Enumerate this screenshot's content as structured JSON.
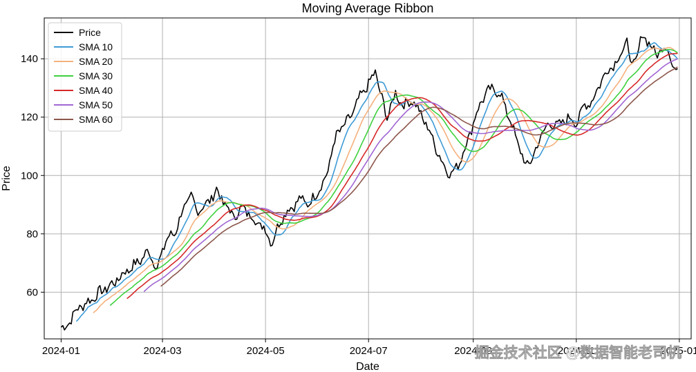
{
  "chart_data": {
    "type": "line",
    "title": "Moving Average Ribbon",
    "xlabel": "Date",
    "ylabel": "Price",
    "x_start": "2024-01-01",
    "x_end": "2024-12-31",
    "xlim": [
      "2023-12-22",
      "2025-01-08"
    ],
    "ylim": [
      44,
      154
    ],
    "x_ticks": [
      "2024-01",
      "2024-03",
      "2024-05",
      "2024-07",
      "2024-09",
      "2024-11",
      "2025-01"
    ],
    "x_tick_labels": [
      "2024-01",
      "2024-03",
      "2024-05",
      "2024-07",
      "2024-09",
      "2024-11",
      "2025-01"
    ],
    "y_ticks": [
      60,
      80,
      100,
      120,
      140
    ],
    "grid": true,
    "legend_position": "top-left",
    "series": [
      {
        "name": "Price",
        "color": "#000000",
        "window": 1
      },
      {
        "name": "SMA 10",
        "color": "#3d9bd6",
        "window": 10
      },
      {
        "name": "SMA 20",
        "color": "#f5b07c",
        "window": 20
      },
      {
        "name": "SMA 30",
        "color": "#3ed13e",
        "window": 30
      },
      {
        "name": "SMA 40",
        "color": "#d62728",
        "window": 40
      },
      {
        "name": "SMA 50",
        "color": "#a066d3",
        "window": 50
      },
      {
        "name": "SMA 60",
        "color": "#8c564b",
        "window": 60
      }
    ],
    "price_anchors": [
      [
        "2024-01-01",
        48
      ],
      [
        "2024-01-03",
        47.5
      ],
      [
        "2024-01-08",
        52
      ],
      [
        "2024-01-12",
        55
      ],
      [
        "2024-01-18",
        57
      ],
      [
        "2024-01-24",
        60
      ],
      [
        "2024-02-01",
        63
      ],
      [
        "2024-02-08",
        67
      ],
      [
        "2024-02-15",
        70
      ],
      [
        "2024-02-22",
        74
      ],
      [
        "2024-02-27",
        68
      ],
      [
        "2024-03-03",
        78
      ],
      [
        "2024-03-08",
        80
      ],
      [
        "2024-03-13",
        88
      ],
      [
        "2024-03-18",
        93
      ],
      [
        "2024-03-21",
        88
      ],
      [
        "2024-03-27",
        90
      ],
      [
        "2024-04-02",
        95
      ],
      [
        "2024-04-07",
        90
      ],
      [
        "2024-04-12",
        86
      ],
      [
        "2024-04-18",
        89
      ],
      [
        "2024-04-24",
        85
      ],
      [
        "2024-04-30",
        82
      ],
      [
        "2024-05-05",
        77
      ],
      [
        "2024-05-10",
        85
      ],
      [
        "2024-05-16",
        89
      ],
      [
        "2024-05-22",
        92
      ],
      [
        "2024-05-27",
        90
      ],
      [
        "2024-06-01",
        95
      ],
      [
        "2024-06-04",
        97
      ],
      [
        "2024-06-07",
        102
      ],
      [
        "2024-06-10",
        110
      ],
      [
        "2024-06-13",
        115
      ],
      [
        "2024-06-18",
        118
      ],
      [
        "2024-06-22",
        122
      ],
      [
        "2024-06-27",
        128
      ],
      [
        "2024-07-02",
        132
      ],
      [
        "2024-07-05",
        136
      ],
      [
        "2024-07-08",
        128
      ],
      [
        "2024-07-12",
        120
      ],
      [
        "2024-07-17",
        128
      ],
      [
        "2024-07-22",
        124
      ],
      [
        "2024-07-27",
        126
      ],
      [
        "2024-08-01",
        121
      ],
      [
        "2024-08-07",
        114
      ],
      [
        "2024-08-13",
        105
      ],
      [
        "2024-08-19",
        100
      ],
      [
        "2024-08-25",
        106
      ],
      [
        "2024-09-01",
        118
      ],
      [
        "2024-09-06",
        126
      ],
      [
        "2024-09-12",
        130
      ],
      [
        "2024-09-18",
        127
      ],
      [
        "2024-09-22",
        120
      ],
      [
        "2024-09-27",
        112
      ],
      [
        "2024-10-02",
        103
      ],
      [
        "2024-10-07",
        107
      ],
      [
        "2024-10-12",
        115
      ],
      [
        "2024-10-17",
        118
      ],
      [
        "2024-10-22",
        117
      ],
      [
        "2024-10-27",
        120
      ],
      [
        "2024-11-01",
        118
      ],
      [
        "2024-11-06",
        124
      ],
      [
        "2024-11-11",
        126
      ],
      [
        "2024-11-16",
        133
      ],
      [
        "2024-11-21",
        137
      ],
      [
        "2024-11-26",
        140
      ],
      [
        "2024-12-01",
        146
      ],
      [
        "2024-12-04",
        137
      ],
      [
        "2024-12-07",
        141
      ],
      [
        "2024-12-10",
        148
      ],
      [
        "2024-12-14",
        146
      ],
      [
        "2024-12-18",
        141
      ],
      [
        "2024-12-22",
        144
      ],
      [
        "2024-12-26",
        143
      ],
      [
        "2024-12-28",
        138
      ]
    ]
  },
  "watermark": "掘金技术社区 @数据智能老司机"
}
